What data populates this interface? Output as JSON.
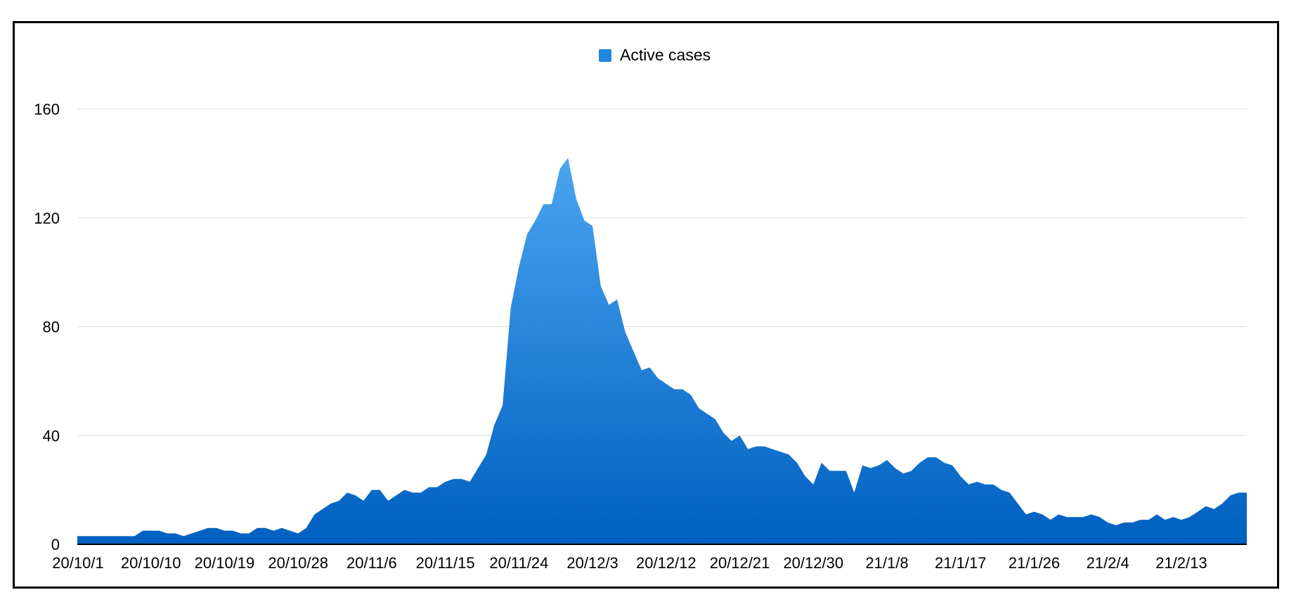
{
  "chart_data": {
    "type": "area",
    "legend": {
      "label": "Active cases",
      "position": "top-center"
    },
    "ylim": [
      0,
      160
    ],
    "yticks": [
      0,
      40,
      80,
      120,
      160
    ],
    "grid": true,
    "x_start": "20/10/1",
    "x_end": "21/2/21",
    "xtick_labels": [
      "20/10/1",
      "20/10/10",
      "20/10/19",
      "20/10/28",
      "20/11/6",
      "20/11/15",
      "20/11/24",
      "20/12/3",
      "20/12/12",
      "20/12/21",
      "20/12/30",
      "21/1/8",
      "21/1/17",
      "21/1/26",
      "21/2/4",
      "21/2/13"
    ],
    "colors": {
      "fill_top": "#4aa4f0",
      "fill_bottom": "#0060c0",
      "legend_marker": "#1f86dd",
      "grid": "#dddddd",
      "axis": "#000000"
    },
    "series": [
      {
        "name": "Active cases",
        "values": [
          3,
          3,
          3,
          3,
          3,
          3,
          3,
          3,
          5,
          5,
          5,
          4,
          4,
          3,
          4,
          5,
          6,
          6,
          5,
          5,
          4,
          4,
          6,
          6,
          5,
          6,
          5,
          4,
          6,
          11,
          13,
          15,
          16,
          19,
          18,
          16,
          20,
          20,
          16,
          18,
          20,
          19,
          19,
          21,
          21,
          23,
          24,
          24,
          23,
          28,
          33,
          44,
          51,
          87,
          102,
          114,
          119,
          125,
          125,
          138,
          142,
          127,
          119,
          117,
          95,
          88,
          90,
          78,
          71,
          64,
          65,
          61,
          59,
          57,
          57,
          55,
          50,
          48,
          46,
          41,
          38,
          40,
          35,
          36,
          36,
          35,
          34,
          33,
          30,
          25,
          22,
          30,
          27,
          27,
          27,
          19,
          29,
          28,
          29,
          31,
          28,
          26,
          27,
          30,
          32,
          32,
          30,
          29,
          25,
          22,
          23,
          22,
          22,
          20,
          19,
          15,
          11,
          12,
          11,
          9,
          11,
          10,
          10,
          10,
          11,
          10,
          8,
          7,
          8,
          8,
          9,
          9,
          11,
          9,
          10,
          9,
          10,
          12,
          14,
          13,
          15,
          18,
          19,
          19
        ]
      }
    ]
  }
}
